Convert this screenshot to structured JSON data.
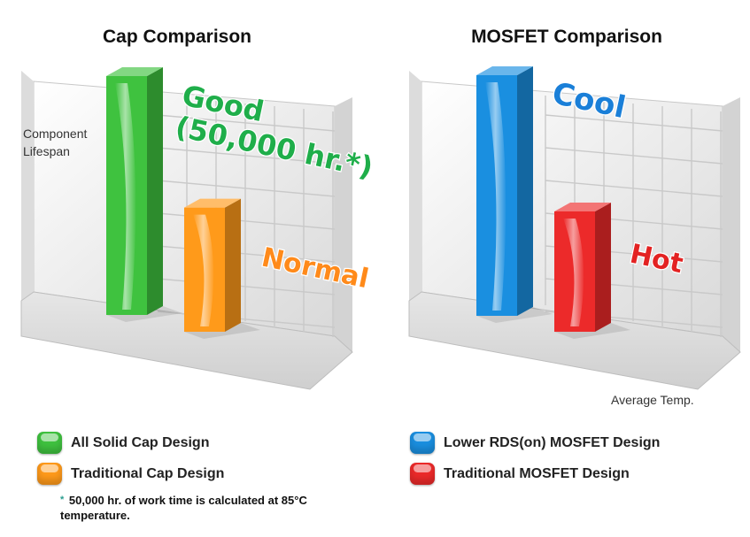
{
  "chart_data": [
    {
      "type": "bar",
      "title": "Cap Comparison",
      "ylabel": "Component Lifespan",
      "xlabel": "",
      "categories": [
        "All Solid Cap Design",
        "Traditional Cap Design"
      ],
      "values": [
        100,
        52
      ],
      "data_labels": [
        "Good\n(50,000 hr.*)",
        "Normal"
      ],
      "colors": [
        "#3fc23f",
        "#ff9a1a"
      ],
      "label_colors": [
        "#1fae4a",
        "#ff8a1a"
      ],
      "ylim": [
        0,
        100
      ],
      "grid": true,
      "legend": [
        {
          "label": "All Solid Cap Design",
          "color": "#3fc23f"
        },
        {
          "label": "Traditional Cap Design",
          "color": "#ff9a1a"
        }
      ]
    },
    {
      "type": "bar",
      "title": "MOSFET Comparison",
      "ylabel": "",
      "xlabel": "Average Temp.",
      "categories": [
        "Lower RDS(on) MOSFET Design",
        "Traditional MOSFET Design"
      ],
      "values": [
        100,
        50
      ],
      "data_labels": [
        "Cool",
        "Hot"
      ],
      "colors": [
        "#1a8fe0",
        "#ec2a2a"
      ],
      "label_colors": [
        "#1a7fd8",
        "#e32222"
      ],
      "ylim": [
        0,
        100
      ],
      "grid": true,
      "legend": [
        {
          "label": "Lower RDS(on) MOSFET Design",
          "color": "#1a8fe0"
        },
        {
          "label": "Traditional MOSFET Design",
          "color": "#ec2a2a"
        }
      ]
    }
  ],
  "footnote": {
    "marker": "*",
    "text": "50,000 hr. of work time is calculated at 85°C temperature."
  }
}
